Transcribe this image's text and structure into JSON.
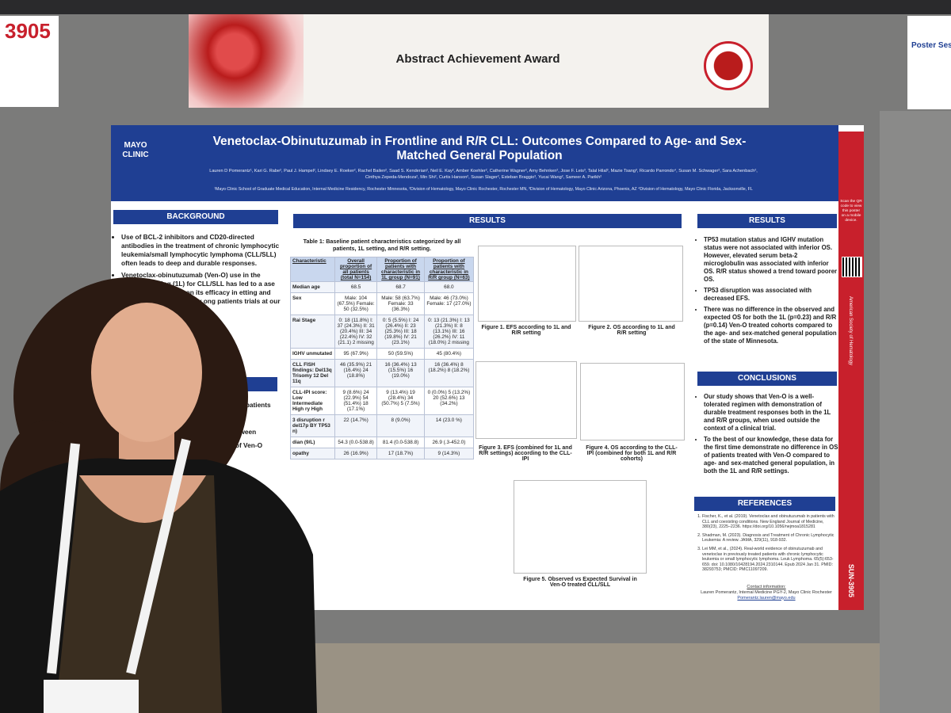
{
  "booth_sign": {
    "number": "3905"
  },
  "award_banner": {
    "text": "Abstract Achievement Award"
  },
  "side_sign": {
    "title": "Poster Sess"
  },
  "poster": {
    "logo": "MAYO CLINIC",
    "title": "Venetoclax-Obinutuzumab in Frontline and R/R CLL: Outcomes Compared to Age- and Sex-Matched General Population",
    "authors": "Lauren D Pomerantz¹, Kari G. Rabe², Paul J. Hampel², Lindsey E. Roeker², Rachel Bailen², Saad S. Kenderian², Neil E. Kay², Amber Koehler², Catherine Wagner², Amy Behnken², Jose F. Leis³, Talal Hilal³, Mazie Tsang³, Ricardo Parrondo⁴, Susan M. Schwager², Sara Achenbach², Cinthya Zepeda-Mendoza², Min Shi², Curtis Hanson², Susan Slager², Esteban Braggio³, Yucai Wang², Sameer A. Parikh²",
    "affiliations": "¹Mayo Clinic School of Graduate Medical Education, Internal Medicine Residency, Rochester Minnesota, ²Division of Hematology, Mayo Clinic Rochester, Rochester MN, ³Division of Hematology, Mayo Clinic Arizona, Phoenix, AZ ⁴Division of Hematology, Mayo Clinic Florida, Jacksonville, FL",
    "background": {
      "heading": "BACKGROUND",
      "bullets": [
        "Use of BCL-2 inhibitors and CD20-directed antibodies in the treatment of chronic lymphocytic leukemia/small lymphocytic lymphoma (CLL/SLL) often leads to deep and durable responses.",
        "Venetoclax-obinutuzumab (Ven-O) use in the frontline setting (1L) for CLL/SLL has led to a ase management 1,2 ata on its efficacy in etting and outside fficacy and safety ong patients trials at our"
      ],
      "second_heading_fragment": "",
      "fragments": [
        "ntify patients",
        "R/R",
        "between",
        "e of Ven-O"
      ]
    },
    "results_middle": {
      "heading": "RESULTS",
      "table_caption": "Table 1: Baseline patient characteristics categorized by all patients, 1L setting, and R/R setting.",
      "table": {
        "header": [
          "Characteristic",
          "Overall proportion of all patients (total N=154)",
          "Proportion of patients with characteristic in 1L group (N=91)",
          "Proportion of patients with characteristic in R/R group (N=63)"
        ],
        "rows": [
          [
            "Median age",
            "68.5",
            "68.7",
            "68.0"
          ],
          [
            "Sex",
            "Male: 104 (67.5%) Female: 50 (32.5%)",
            "Male: 58 (63.7%) Female: 33 (36.3%)",
            "Male: 46 (73.0%) Female: 17 (27.0%)"
          ],
          [
            "Rai Stage",
            "0: 18 (11.8%) I: 37 (24.3%) II: 31 (20.4%) III: 34 (22.4%) IV: 32 (21.1) 2 missing",
            "0: 5 (5.5%) I: 24 (26.4%) II: 23 (25.3%) III: 18 (19.8%) IV: 21 (23.1%)",
            "0: 13 (21.3%) I: 13 (21.3%) II: 8 (13.1%) III: 16 (26.2%) IV: 11 (18.0%) 2 missing"
          ],
          [
            "IGHV unmutated",
            "95 (67.9%)",
            "50 (59.5%)",
            "45 (80.4%)"
          ],
          [
            "CLL FISH findings: Del13q Trisomy 12 Del 11q",
            "46 (35.9%) 21 (16.4%) 24 (18.8%)",
            "16 (36.4%) 13 (15.5%) 16 (19.0%)",
            "16 (36.4%) 8 (18.2%) 8 (18.2%)"
          ],
          [
            "CLL-IPI score: Low Intermediate High ry High",
            "9 (8.6%) 24 (22.9%) 54 (51.4%) 18 (17.1%)",
            "9 (13.4%) 19 (28.4%) 34 (50.7%) 5 (7.5%)",
            "0 (0.0%) 5 (13.2%) 20 (52.6%) 13 (34.2%)"
          ],
          [
            "3 disruption r del17p BY TP53 n)",
            "22 (14.7%)",
            "8 (9.0%)",
            "14 (23.0 %)"
          ],
          [
            "dian (9/L)",
            "54.3 (0.0-538.8)",
            "81.4 (0.0-538.8)",
            "26.9 (.3-452.0)"
          ],
          [
            "opathy",
            "26 (16.9%)",
            "17 (18.7%)",
            "9 (14.3%)"
          ]
        ]
      },
      "figures": [
        "Figure 1. EFS according to 1L and R/R setting",
        "Figure 2. OS according to 1L and R/R setting",
        "Figure 3. EFS (combined for 1L and R/R settings) according to the CLL-IPI",
        "Figure 4. OS according to the CLL-IPI (combined for both 1L and R/R cohorts)",
        "Figure 5. Observed vs Expected Survival in Ven-O treated CLL/SLL"
      ]
    },
    "results_right": {
      "heading": "RESULTS",
      "bullets": [
        "TP53 mutation status and IGHV mutation status were not associated with inferior OS. However, elevated serum beta-2 microglobulin was associated with inferior OS. R/R status showed a trend toward poorer OS.",
        "TP53 disruption was associated with decreased EFS.",
        "There was no difference in the observed and expected OS for both the 1L (p=0.23) and R/R (p=0.14) Ven-O treated cohorts compared to the age- and sex-matched general population of the state of Minnesota."
      ]
    },
    "conclusions": {
      "heading": "CONCLUSIONS",
      "bullets": [
        "Our study shows that Ven-O is a well-tolerated regimen with demonstration of durable treatment responses both in the 1L and R/R groups, when used outside the context of a clinical trial.",
        "To the best of our knowledge, these data for the first time demonstrate no difference in OS of patients treated with Ven-O compared to age- and sex-matched general population, in both the 1L and R/R settings."
      ]
    },
    "references": {
      "heading": "REFERENCES",
      "items": [
        "Fischer, K., et al. (2019). Venetoclax and obinutuzumab in patients with CLL and coexisting conditions. New England Journal of Medicine, 380(23), 2225–2236. https://doi.org/10.1056/nejmoa1815281",
        "Shadman, M. (2023). Diagnosis and Treatment of Chronic Lymphocytic Leukemia: A review. JAMA, 329(11), 918-932.",
        "Lei MM, et al., (2024). Real-world evidence of obinutuzumab and venetoclax in previously treated patients with chronic lymphocytic leukemia or small lymphocytic lymphoma. Leuk Lymphoma. 65(5):653-659. doi: 10.1080/10428194.2024.2310144. Epub 2024 Jan 31. PMID: 38293753; PMCID: PMC11097209."
      ]
    },
    "contact": [
      "Contact information:",
      "Lauren Pomerantz, Internal Medicine PGY-2, Mayo Clinic Rochester",
      "Pomerantz.lauren@mayo.edu"
    ],
    "side_strip": {
      "qr_text": "Scan the QR code to view this poster on a mobile device.",
      "society": "American Society of Hematology",
      "poster_id": "SUN-3905"
    }
  }
}
